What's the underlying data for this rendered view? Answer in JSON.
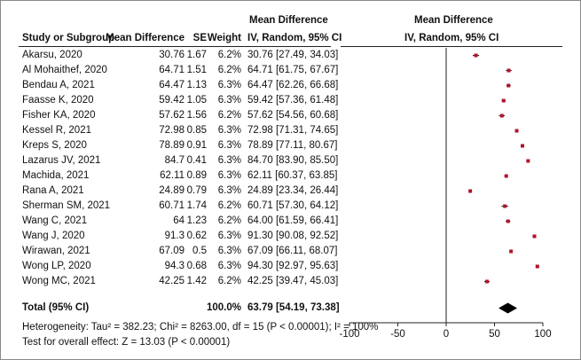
{
  "chart_data": {
    "type": "forest",
    "columns": {
      "study": "Study or Subgroup",
      "md": "Mean Difference",
      "se": "SE",
      "weight": "Weight",
      "ci_top": "Mean Difference",
      "ci_sub": "IV, Random, 95% CI",
      "plot_top": "Mean Difference",
      "plot_sub": "IV, Random, 95% CI"
    },
    "studies": [
      {
        "study": "Akarsu, 2020",
        "md": "30.76",
        "se": "1.67",
        "weight": "6.2%",
        "ci": "30.76 [27.49, 34.03]",
        "est": 30.76,
        "lo": 27.49,
        "hi": 34.03
      },
      {
        "study": "Al Mohaithef, 2020",
        "md": "64.71",
        "se": "1.51",
        "weight": "6.2%",
        "ci": "64.71 [61.75, 67.67]",
        "est": 64.71,
        "lo": 61.75,
        "hi": 67.67
      },
      {
        "study": "Bendau A, 2021",
        "md": "64.47",
        "se": "1.13",
        "weight": "6.3%",
        "ci": "64.47 [62.26, 66.68]",
        "est": 64.47,
        "lo": 62.26,
        "hi": 66.68
      },
      {
        "study": "Faasse K, 2020",
        "md": "59.42",
        "se": "1.05",
        "weight": "6.3%",
        "ci": "59.42 [57.36, 61.48]",
        "est": 59.42,
        "lo": 57.36,
        "hi": 61.48
      },
      {
        "study": "Fisher KA, 2020",
        "md": "57.62",
        "se": "1.56",
        "weight": "6.2%",
        "ci": "57.62 [54.56, 60.68]",
        "est": 57.62,
        "lo": 54.56,
        "hi": 60.68
      },
      {
        "study": "Kessel R, 2021",
        "md": "72.98",
        "se": "0.85",
        "weight": "6.3%",
        "ci": "72.98 [71.31, 74.65]",
        "est": 72.98,
        "lo": 71.31,
        "hi": 74.65
      },
      {
        "study": "Kreps S, 2020",
        "md": "78.89",
        "se": "0.91",
        "weight": "6.3%",
        "ci": "78.89 [77.11, 80.67]",
        "est": 78.89,
        "lo": 77.11,
        "hi": 80.67
      },
      {
        "study": "Lazarus JV, 2021",
        "md": "84.7",
        "se": "0.41",
        "weight": "6.3%",
        "ci": "84.70 [83.90, 85.50]",
        "est": 84.7,
        "lo": 83.9,
        "hi": 85.5
      },
      {
        "study": "Machida, 2021",
        "md": "62.11",
        "se": "0.89",
        "weight": "6.3%",
        "ci": "62.11 [60.37, 63.85]",
        "est": 62.11,
        "lo": 60.37,
        "hi": 63.85
      },
      {
        "study": "Rana A, 2021",
        "md": "24.89",
        "se": "0.79",
        "weight": "6.3%",
        "ci": "24.89 [23.34, 26.44]",
        "est": 24.89,
        "lo": 23.34,
        "hi": 26.44
      },
      {
        "study": "Sherman SM, 2021",
        "md": "60.71",
        "se": "1.74",
        "weight": "6.2%",
        "ci": "60.71 [57.30, 64.12]",
        "est": 60.71,
        "lo": 57.3,
        "hi": 64.12
      },
      {
        "study": "Wang C, 2021",
        "md": "64",
        "se": "1.23",
        "weight": "6.2%",
        "ci": "64.00 [61.59, 66.41]",
        "est": 64.0,
        "lo": 61.59,
        "hi": 66.41
      },
      {
        "study": "Wang J, 2020",
        "md": "91.3",
        "se": "0.62",
        "weight": "6.3%",
        "ci": "91.30 [90.08, 92.52]",
        "est": 91.3,
        "lo": 90.08,
        "hi": 92.52
      },
      {
        "study": "Wirawan, 2021",
        "md": "67.09",
        "se": "0.5",
        "weight": "6.3%",
        "ci": "67.09 [66.11, 68.07]",
        "est": 67.09,
        "lo": 66.11,
        "hi": 68.07
      },
      {
        "study": "Wong LP, 2020",
        "md": "94.3",
        "se": "0.68",
        "weight": "6.3%",
        "ci": "94.30 [92.97, 95.63]",
        "est": 94.3,
        "lo": 92.97,
        "hi": 95.63
      },
      {
        "study": "Wong MC, 2021",
        "md": "42.25",
        "se": "1.42",
        "weight": "6.2%",
        "ci": "42.25 [39.47, 45.03]",
        "est": 42.25,
        "lo": 39.47,
        "hi": 45.03
      }
    ],
    "total": {
      "label": "Total (95% CI)",
      "weight": "100.0%",
      "ci": "63.79 [54.19, 73.38]",
      "est": 63.79,
      "lo": 54.19,
      "hi": 73.38
    },
    "heterogeneity": "Heterogeneity: Tau² = 382.23; Chi² = 8263.00, df = 15 (P < 0.00001); I² = 100%",
    "overall_effect": "Test for overall effect: Z = 13.03 (P < 0.00001)",
    "xlim": [
      -100,
      100
    ],
    "ticks": [
      "-100",
      "-50",
      "0",
      "50",
      "100"
    ],
    "tick_values": [
      -100,
      -50,
      0,
      50,
      100
    ],
    "colors": {
      "marker": "#b0142a",
      "text": "#111111",
      "line": "#222222"
    }
  }
}
